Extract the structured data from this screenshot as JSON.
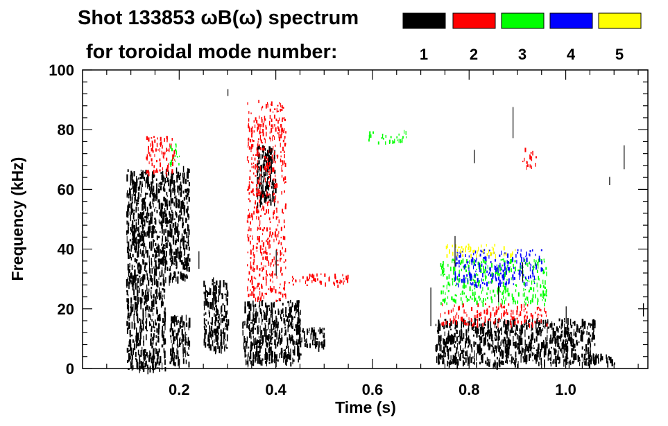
{
  "chart_data": {
    "type": "spectrogram",
    "title_line1": "Shot 133853 ωB(ω) spectrum",
    "title_line2": "for toroidal mode number:",
    "xlabel": "Time (s)",
    "ylabel": "Frequency (kHz)",
    "xlim": [
      0.0,
      1.17
    ],
    "ylim": [
      0,
      100
    ],
    "x_ticks": [
      0.2,
      0.4,
      0.6,
      0.8,
      1.0
    ],
    "x_tick_labels": [
      "0.2",
      "0.4",
      "0.6",
      "0.8",
      "1.0"
    ],
    "y_ticks": [
      0,
      20,
      40,
      60,
      80,
      100
    ],
    "y_tick_labels": [
      "0",
      "20",
      "40",
      "60",
      "80",
      "100"
    ],
    "legend": [
      {
        "label": "1",
        "color": "#000000"
      },
      {
        "label": "2",
        "color": "#ff0000"
      },
      {
        "label": "3",
        "color": "#00ff00"
      },
      {
        "label": "4",
        "color": "#0000ff"
      },
      {
        "label": "5",
        "color": "#ffff00"
      }
    ],
    "regions": [
      {
        "mode": 1,
        "t": [
          0.09,
          0.17
        ],
        "f": [
          0,
          67
        ]
      },
      {
        "mode": 1,
        "t": [
          0.17,
          0.22
        ],
        "f": [
          30,
          68
        ]
      },
      {
        "mode": 1,
        "t": [
          0.18,
          0.22
        ],
        "f": [
          2,
          18
        ]
      },
      {
        "mode": 1,
        "t": [
          0.25,
          0.3
        ],
        "f": [
          7,
          30
        ]
      },
      {
        "mode": 1,
        "t": [
          0.33,
          0.45
        ],
        "f": [
          2,
          23
        ]
      },
      {
        "mode": 1,
        "t": [
          0.36,
          0.4
        ],
        "f": [
          55,
          75
        ]
      },
      {
        "mode": 1,
        "t": [
          0.44,
          0.5
        ],
        "f": [
          8,
          14
        ]
      },
      {
        "mode": 1,
        "t": [
          0.73,
          1.06
        ],
        "f": [
          2,
          17
        ]
      },
      {
        "mode": 1,
        "t": [
          1.04,
          1.1
        ],
        "f": [
          2,
          5
        ]
      },
      {
        "mode": 2,
        "t": [
          0.34,
          0.42
        ],
        "f": [
          23,
          90
        ]
      },
      {
        "mode": 2,
        "t": [
          0.42,
          0.55
        ],
        "f": [
          28,
          32
        ]
      },
      {
        "mode": 2,
        "t": [
          0.74,
          0.96
        ],
        "f": [
          15,
          22
        ]
      },
      {
        "mode": 2,
        "t": [
          0.13,
          0.19
        ],
        "f": [
          65,
          78
        ]
      },
      {
        "mode": 2,
        "t": [
          0.91,
          0.94
        ],
        "f": [
          68,
          74
        ]
      },
      {
        "mode": 3,
        "t": [
          0.59,
          0.67
        ],
        "f": [
          76,
          80
        ]
      },
      {
        "mode": 3,
        "t": [
          0.74,
          0.96
        ],
        "f": [
          22,
          37
        ]
      },
      {
        "mode": 3,
        "t": [
          0.18,
          0.2
        ],
        "f": [
          68,
          76
        ]
      },
      {
        "mode": 4,
        "t": [
          0.77,
          0.95
        ],
        "f": [
          28,
          40
        ]
      },
      {
        "mode": 5,
        "t": [
          0.75,
          0.9
        ],
        "f": [
          38,
          42
        ]
      }
    ]
  }
}
